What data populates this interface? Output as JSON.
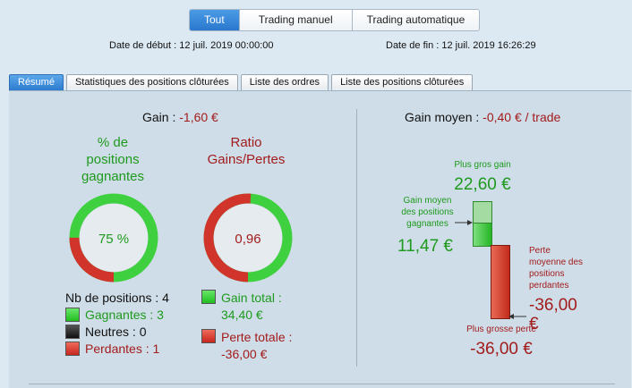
{
  "top_tabs": {
    "all": "Tout",
    "manual": "Trading manuel",
    "auto": "Trading automatique"
  },
  "dates": {
    "start_label": "Date de début :",
    "start_value": "12 juil. 2019 00:00:00",
    "end_label": "Date de fin :",
    "end_value": "12 juil. 2019 16:26:29"
  },
  "tabs": [
    "Résumé",
    "Statistiques des positions clôturées",
    "Liste des ordres",
    "Liste des positions clôturées"
  ],
  "gain": {
    "label": "Gain :",
    "value": "-1,60 €"
  },
  "avg_gain": {
    "label": "Gain moyen :",
    "value": "-0,40 € / trade"
  },
  "win_pct": {
    "title_l1": "% de",
    "title_l2": "positions",
    "title_l3": "gagnantes",
    "value": "75 %",
    "fraction": 0.75
  },
  "ratio": {
    "title_l1": "Ratio",
    "title_l2": "Gains/Pertes",
    "value": "0,96",
    "fraction": 0.49
  },
  "counts": {
    "total": "Nb de positions : 4",
    "winners": "Gagnantes : 3",
    "neutral": "Neutres : 0",
    "losers": "Perdantes : 1"
  },
  "totals": {
    "gain_label": "Gain total :",
    "gain_value": "34,40 €",
    "loss_label": "Perte totale :",
    "loss_value": "-36,00 €"
  },
  "bars": {
    "best_label": "Plus gros gain",
    "best_value": "22,60 €",
    "avg_win_l1": "Gain moyen",
    "avg_win_l2": "des positions",
    "avg_win_l3": "gagnantes",
    "avg_win_value": "11,47 €",
    "avg_loss_l1": "Perte",
    "avg_loss_l2": "moyenne des",
    "avg_loss_l3": "positions",
    "avg_loss_l4": "perdantes",
    "avg_loss_value_l1": "-36,00",
    "avg_loss_value_l2": "€",
    "worst_label": "Plus grosse perte",
    "worst_value": "-36,00 €"
  },
  "colors": {
    "accent": "#2a78cf",
    "green": "#1e9a1e",
    "red": "#a21c1c",
    "ring_green": "#3fd03f",
    "ring_red": "#d0342a"
  }
}
